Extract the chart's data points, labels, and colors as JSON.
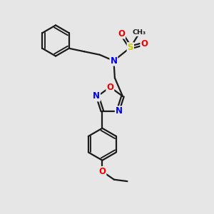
{
  "bg_color": "#e6e6e6",
  "bond_color": "#1a1a1a",
  "bond_width": 1.6,
  "dbo": 0.06,
  "atom_colors": {
    "N": "#0000ee",
    "O": "#ee0000",
    "S": "#cccc00"
  },
  "fs": 8.5
}
